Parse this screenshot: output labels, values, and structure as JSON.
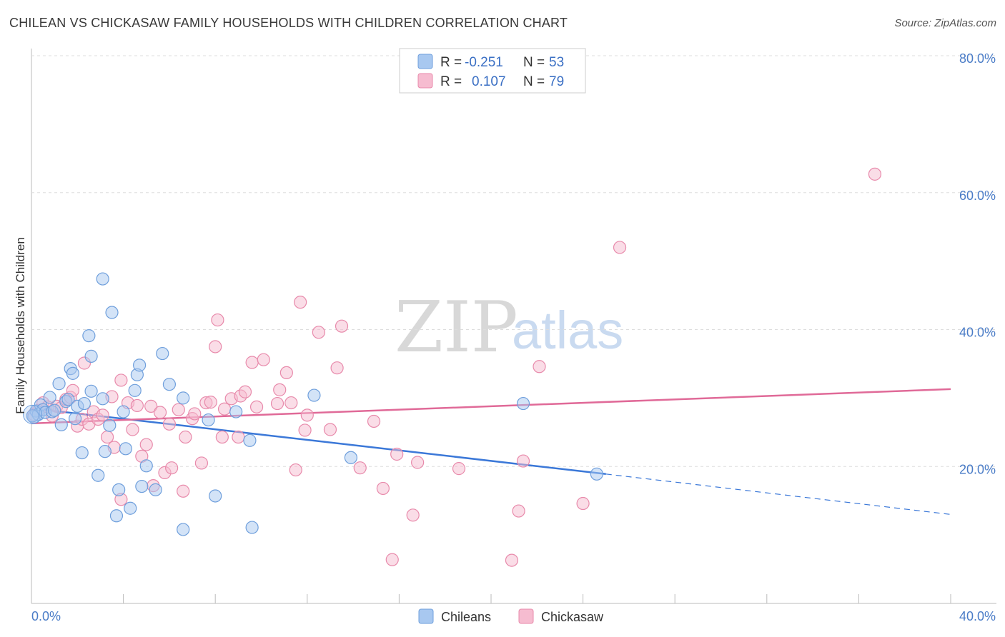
{
  "title": "CHILEAN VS CHICKASAW FAMILY HOUSEHOLDS WITH CHILDREN CORRELATION CHART",
  "source": "Source: ZipAtlas.com",
  "watermark": {
    "zip": "ZIP",
    "atlas": "atlas"
  },
  "legend": {
    "rows": [
      {
        "r_label": "R =",
        "r_value": "-0.251",
        "n_label": "N =",
        "n_value": "53"
      },
      {
        "r_label": "R =",
        "r_value": "0.107",
        "n_label": "N =",
        "n_value": "79"
      }
    ]
  },
  "bottom_legend": [
    "Chileans",
    "Chickasaw"
  ],
  "colors": {
    "chileans_fill": "#a8c8f0",
    "chileans_stroke": "#6f9fdc",
    "chileans_line": "#3b78d8",
    "chickasaw_fill": "#f6bcd0",
    "chickasaw_stroke": "#e88aab",
    "chickasaw_line": "#e06a98",
    "tick_text": "#4a7cc7",
    "grid": "#dddddd"
  },
  "chart_data": {
    "type": "scatter",
    "title": "CHILEAN VS CHICKASAW FAMILY HOUSEHOLDS WITH CHILDREN CORRELATION CHART",
    "xlabel": "",
    "ylabel": "Family Households with Children",
    "xlim": [
      0,
      40
    ],
    "ylim": [
      0,
      80
    ],
    "x_tick_labels": [
      "0.0%",
      "40.0%"
    ],
    "y_ticks": [
      20,
      40,
      60,
      80
    ],
    "y_tick_labels": [
      "20.0%",
      "40.0%",
      "60.0%",
      "80.0%"
    ],
    "grid": true,
    "legend_position": "top-center",
    "series": [
      {
        "name": "Chileans",
        "points": [
          [
            0.1,
            27.2
          ],
          [
            0.2,
            28.1
          ],
          [
            0.3,
            27.6
          ],
          [
            0.4,
            29.0
          ],
          [
            0.5,
            28.3
          ],
          [
            0.6,
            27.9
          ],
          [
            0.8,
            30.1
          ],
          [
            0.9,
            28.0
          ],
          [
            1.0,
            28.2
          ],
          [
            1.2,
            32.1
          ],
          [
            1.3,
            26.1
          ],
          [
            1.5,
            29.5
          ],
          [
            1.6,
            29.8
          ],
          [
            1.7,
            34.3
          ],
          [
            1.8,
            33.6
          ],
          [
            1.9,
            27.0
          ],
          [
            2.0,
            28.8
          ],
          [
            2.2,
            22.0
          ],
          [
            2.3,
            29.2
          ],
          [
            2.5,
            39.1
          ],
          [
            2.6,
            36.1
          ],
          [
            2.6,
            31.0
          ],
          [
            2.9,
            18.7
          ],
          [
            3.1,
            29.9
          ],
          [
            3.1,
            47.4
          ],
          [
            3.2,
            22.2
          ],
          [
            3.4,
            26.0
          ],
          [
            3.5,
            42.5
          ],
          [
            3.7,
            12.8
          ],
          [
            3.8,
            16.6
          ],
          [
            4.0,
            28.0
          ],
          [
            4.1,
            22.6
          ],
          [
            4.3,
            13.9
          ],
          [
            4.5,
            31.1
          ],
          [
            4.6,
            33.4
          ],
          [
            4.7,
            34.8
          ],
          [
            4.8,
            17.1
          ],
          [
            5.0,
            20.1
          ],
          [
            5.4,
            16.6
          ],
          [
            5.7,
            36.5
          ],
          [
            6.0,
            32.0
          ],
          [
            6.6,
            30.0
          ],
          [
            6.6,
            10.8
          ],
          [
            7.7,
            26.8
          ],
          [
            8.0,
            15.7
          ],
          [
            8.9,
            28.0
          ],
          [
            9.5,
            23.8
          ],
          [
            9.6,
            11.1
          ],
          [
            12.3,
            30.4
          ],
          [
            13.9,
            21.3
          ],
          [
            21.4,
            29.2
          ],
          [
            24.6,
            18.9
          ],
          [
            0.05,
            27.4
          ]
        ]
      },
      {
        "name": "Chickasaw",
        "points": [
          [
            0.1,
            27.6
          ],
          [
            0.3,
            28.2
          ],
          [
            0.5,
            29.3
          ],
          [
            0.7,
            28.7
          ],
          [
            0.9,
            27.4
          ],
          [
            1.1,
            28.8
          ],
          [
            1.3,
            28.6
          ],
          [
            1.5,
            29.8
          ],
          [
            1.7,
            30.1
          ],
          [
            1.8,
            31.1
          ],
          [
            2.0,
            25.9
          ],
          [
            2.2,
            26.9
          ],
          [
            2.3,
            35.1
          ],
          [
            2.5,
            26.2
          ],
          [
            2.7,
            28.0
          ],
          [
            2.9,
            26.9
          ],
          [
            3.1,
            27.5
          ],
          [
            3.3,
            24.3
          ],
          [
            3.5,
            30.2
          ],
          [
            3.6,
            22.8
          ],
          [
            3.9,
            15.2
          ],
          [
            3.9,
            32.6
          ],
          [
            4.2,
            29.3
          ],
          [
            4.4,
            25.4
          ],
          [
            4.6,
            28.9
          ],
          [
            4.8,
            21.5
          ],
          [
            5.0,
            23.2
          ],
          [
            5.2,
            28.8
          ],
          [
            5.3,
            17.2
          ],
          [
            5.6,
            27.9
          ],
          [
            5.8,
            19.1
          ],
          [
            6.0,
            26.2
          ],
          [
            6.1,
            19.8
          ],
          [
            6.4,
            28.3
          ],
          [
            6.6,
            16.4
          ],
          [
            6.7,
            24.3
          ],
          [
            7.0,
            27.0
          ],
          [
            7.1,
            27.7
          ],
          [
            7.4,
            20.5
          ],
          [
            7.6,
            29.3
          ],
          [
            7.8,
            29.4
          ],
          [
            8.0,
            37.5
          ],
          [
            8.1,
            41.4
          ],
          [
            8.3,
            24.3
          ],
          [
            8.4,
            28.4
          ],
          [
            8.7,
            29.9
          ],
          [
            9.0,
            24.3
          ],
          [
            9.1,
            30.3
          ],
          [
            9.3,
            30.9
          ],
          [
            9.6,
            35.2
          ],
          [
            9.8,
            28.7
          ],
          [
            10.1,
            35.6
          ],
          [
            10.7,
            29.2
          ],
          [
            10.8,
            31.2
          ],
          [
            11.1,
            33.7
          ],
          [
            11.3,
            29.3
          ],
          [
            11.5,
            19.5
          ],
          [
            11.7,
            44.0
          ],
          [
            11.9,
            25.3
          ],
          [
            12.0,
            27.5
          ],
          [
            12.5,
            39.6
          ],
          [
            13.0,
            25.4
          ],
          [
            13.3,
            34.4
          ],
          [
            13.5,
            40.5
          ],
          [
            14.3,
            19.8
          ],
          [
            14.9,
            26.6
          ],
          [
            15.3,
            16.8
          ],
          [
            15.7,
            6.4
          ],
          [
            15.9,
            21.8
          ],
          [
            16.6,
            12.9
          ],
          [
            16.8,
            20.6
          ],
          [
            18.6,
            19.7
          ],
          [
            20.9,
            6.3
          ],
          [
            21.2,
            13.5
          ],
          [
            21.4,
            20.8
          ],
          [
            22.1,
            34.6
          ],
          [
            24.0,
            14.6
          ],
          [
            25.6,
            52.0
          ],
          [
            36.7,
            62.7
          ]
        ]
      }
    ],
    "trend_lines": [
      {
        "name": "Chileans",
        "x": [
          0,
          25
        ],
        "y": [
          28.5,
          18.9
        ],
        "dashed_to": [
          40,
          13.0
        ]
      },
      {
        "name": "Chickasaw",
        "x": [
          0,
          40
        ],
        "y": [
          26.3,
          31.3
        ]
      }
    ]
  }
}
